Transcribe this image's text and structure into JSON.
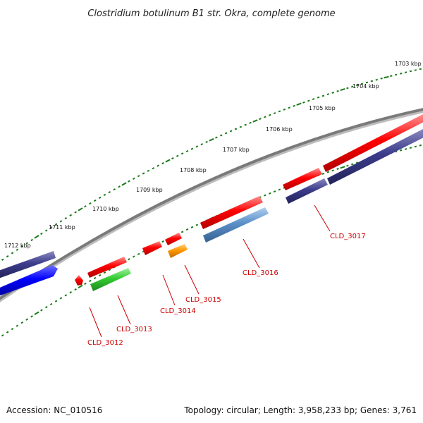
{
  "title": "Clostridium botulinum B1 str. Okra, complete genome",
  "footer": {
    "accession": "Accession: NC_010516",
    "summary": "Topology: circular; Length: 3,958,233 bp; Genes: 3,761"
  },
  "kbp_labels": [
    "1703 kbp",
    "1704 kbp",
    "1705 kbp",
    "1706 kbp",
    "1707 kbp",
    "1708 kbp",
    "1709 kbp",
    "1710 kbp",
    "1711 kbp",
    "1712 kbp"
  ],
  "genes": [
    {
      "id": "CLD_3012",
      "label": "CLD_3012"
    },
    {
      "id": "CLD_3013",
      "label": "CLD_3013"
    },
    {
      "id": "CLD_3014",
      "label": "CLD_3014"
    },
    {
      "id": "CLD_3015",
      "label": "CLD_3015"
    },
    {
      "id": "CLD_3016",
      "label": "CLD_3016"
    },
    {
      "id": "CLD_3017",
      "label": "CLD_3017"
    }
  ],
  "colors": {
    "gene_red": "#ff0000",
    "gene_blue": "#0000ff",
    "gene_navy": "#3c3c8c",
    "gene_green": "#33cc33",
    "gene_orange": "#ff9900",
    "gene_steel": "#5b8fc9",
    "backbone": "#7a7a7a",
    "tick": "#1a7a1a",
    "label": "#cc0000"
  }
}
